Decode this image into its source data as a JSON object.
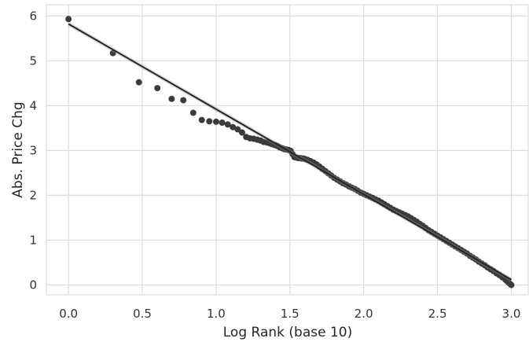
{
  "chart_data": {
    "type": "scatter",
    "xlabel": "Log Rank (base 10)",
    "ylabel": "Abs. Price Chg",
    "xlim": [
      -0.15,
      3.12
    ],
    "ylim": [
      -0.22,
      6.25
    ],
    "x_ticks": [
      "0.0",
      "0.5",
      "1.0",
      "1.5",
      "2.0",
      "2.5",
      "3.0"
    ],
    "y_ticks": [
      "0",
      "1",
      "2",
      "3",
      "4",
      "5",
      "6"
    ],
    "grid": true,
    "point_color": "#3b3b3b",
    "line_color": "#262626",
    "series": [
      {
        "points": [
          [
            0.0,
            5.93
          ],
          [
            0.301,
            5.17
          ],
          [
            0.477,
            4.52
          ],
          [
            0.602,
            4.39
          ],
          [
            0.699,
            4.15
          ],
          [
            0.778,
            4.12
          ],
          [
            0.845,
            3.84
          ],
          [
            0.903,
            3.68
          ],
          [
            0.954,
            3.65
          ],
          [
            1.0,
            3.64
          ],
          [
            1.041,
            3.62
          ],
          [
            1.079,
            3.58
          ],
          [
            1.114,
            3.52
          ],
          [
            1.146,
            3.47
          ],
          [
            1.176,
            3.4
          ],
          [
            1.204,
            3.3
          ],
          [
            1.23,
            3.27
          ],
          [
            1.255,
            3.26
          ],
          [
            1.279,
            3.24
          ],
          [
            1.301,
            3.22
          ],
          [
            1.322,
            3.19
          ],
          [
            1.342,
            3.18
          ],
          [
            1.362,
            3.16
          ],
          [
            1.38,
            3.14
          ],
          [
            1.398,
            3.12
          ],
          [
            1.415,
            3.1
          ],
          [
            1.431,
            3.07
          ],
          [
            1.447,
            3.05
          ],
          [
            1.462,
            3.03
          ],
          [
            1.477,
            3.02
          ],
          [
            1.491,
            3.01
          ],
          [
            1.505,
            2.99
          ],
          [
            1.518,
            2.92
          ],
          [
            1.531,
            2.85
          ],
          [
            1.544,
            2.84
          ],
          [
            1.556,
            2.83
          ],
          [
            1.568,
            2.83
          ],
          [
            1.58,
            2.82
          ],
          [
            1.591,
            2.82
          ],
          [
            1.602,
            2.81
          ],
          [
            1.62,
            2.79
          ],
          [
            1.64,
            2.76
          ],
          [
            1.66,
            2.73
          ],
          [
            1.68,
            2.69
          ],
          [
            1.7,
            2.64
          ],
          [
            1.72,
            2.59
          ],
          [
            1.74,
            2.54
          ],
          [
            1.76,
            2.49
          ],
          [
            1.78,
            2.44
          ],
          [
            1.8,
            2.39
          ],
          [
            1.82,
            2.35
          ],
          [
            1.84,
            2.31
          ],
          [
            1.86,
            2.27
          ],
          [
            1.88,
            2.24
          ],
          [
            1.9,
            2.2
          ],
          [
            1.92,
            2.17
          ],
          [
            1.94,
            2.14
          ],
          [
            1.96,
            2.1
          ],
          [
            1.98,
            2.06
          ],
          [
            2.0,
            2.03
          ],
          [
            2.02,
            2.0
          ],
          [
            2.04,
            1.97
          ],
          [
            2.06,
            1.94
          ],
          [
            2.08,
            1.91
          ],
          [
            2.1,
            1.88
          ],
          [
            2.12,
            1.84
          ],
          [
            2.14,
            1.8
          ],
          [
            2.16,
            1.76
          ],
          [
            2.18,
            1.72
          ],
          [
            2.2,
            1.68
          ],
          [
            2.22,
            1.65
          ],
          [
            2.24,
            1.62
          ],
          [
            2.26,
            1.59
          ],
          [
            2.28,
            1.56
          ],
          [
            2.3,
            1.53
          ],
          [
            2.32,
            1.49
          ],
          [
            2.34,
            1.45
          ],
          [
            2.36,
            1.41
          ],
          [
            2.38,
            1.36
          ],
          [
            2.4,
            1.32
          ],
          [
            2.42,
            1.27
          ],
          [
            2.44,
            1.22
          ],
          [
            2.46,
            1.18
          ],
          [
            2.48,
            1.14
          ],
          [
            2.5,
            1.1
          ],
          [
            2.52,
            1.06
          ],
          [
            2.54,
            1.02
          ],
          [
            2.56,
            0.98
          ],
          [
            2.58,
            0.94
          ],
          [
            2.6,
            0.9
          ],
          [
            2.62,
            0.86
          ],
          [
            2.64,
            0.82
          ],
          [
            2.66,
            0.78
          ],
          [
            2.68,
            0.74
          ],
          [
            2.7,
            0.7
          ],
          [
            2.72,
            0.65
          ],
          [
            2.74,
            0.61
          ],
          [
            2.76,
            0.57
          ],
          [
            2.78,
            0.52
          ],
          [
            2.8,
            0.48
          ],
          [
            2.82,
            0.44
          ],
          [
            2.84,
            0.39
          ],
          [
            2.86,
            0.35
          ],
          [
            2.88,
            0.31
          ],
          [
            2.9,
            0.26
          ],
          [
            2.92,
            0.22
          ],
          [
            2.94,
            0.17
          ],
          [
            2.96,
            0.12
          ],
          [
            2.97,
            0.09
          ],
          [
            2.98,
            0.06
          ],
          [
            2.99,
            0.03
          ],
          [
            3.0,
            0.0
          ]
        ]
      }
    ],
    "regression": {
      "x": [
        0.0,
        3.0
      ],
      "y": [
        5.82,
        0.12
      ]
    }
  }
}
